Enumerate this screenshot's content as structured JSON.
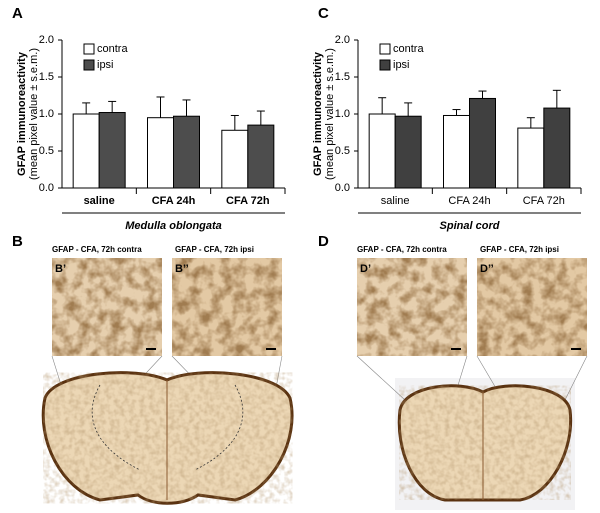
{
  "chart_data": [
    {
      "type": "bar",
      "ylabel": "GFAP  immunoreactivity",
      "ylabel_sub": "(mean pixel value ± s.e.m.)",
      "categories": [
        "saline",
        "CFA 24h",
        "CFA 72h"
      ],
      "xlabel": "Medulla oblongata",
      "series": [
        {
          "name": "contra",
          "color": "#ffffff",
          "values": [
            1.0,
            0.95,
            0.78
          ],
          "errors": [
            0.15,
            0.28,
            0.2
          ]
        },
        {
          "name": "ipsi",
          "color": "#4d4d4d",
          "values": [
            1.02,
            0.97,
            0.85
          ],
          "errors": [
            0.15,
            0.22,
            0.19
          ]
        }
      ],
      "ylim": [
        0,
        2
      ],
      "yticks": [
        {
          "value": 0,
          "label": "0.0"
        },
        {
          "value": 0.5,
          "label": "0.5"
        },
        {
          "value": 1,
          "label": "1.0"
        },
        {
          "value": 1.5,
          "label": "1.5"
        },
        {
          "value": 2,
          "label": "2.0"
        }
      ],
      "legend": "upper left"
    },
    {
      "type": "bar",
      "ylabel": "GFAP  immunoreactivity",
      "ylabel_sub": "(mean pixel value ± s.e.m.)",
      "categories": [
        "saline",
        "CFA 24h",
        "CFA 72h"
      ],
      "xlabel": "Spinal cord",
      "series": [
        {
          "name": "contra",
          "color": "#ffffff",
          "values": [
            1.0,
            0.98,
            0.81
          ],
          "errors": [
            0.22,
            0.08,
            0.14
          ]
        },
        {
          "name": "ipsi",
          "color": "#404040",
          "values": [
            0.97,
            1.21,
            1.08
          ],
          "errors": [
            0.18,
            0.1,
            0.24
          ]
        }
      ],
      "ylim": [
        0,
        2
      ],
      "yticks": [
        {
          "value": 0,
          "label": "0.0"
        },
        {
          "value": 0.5,
          "label": "0.5"
        },
        {
          "value": 1,
          "label": "1.0"
        },
        {
          "value": 1.5,
          "label": "1.5"
        },
        {
          "value": 2,
          "label": "2.0"
        }
      ],
      "legend": "upper left"
    }
  ],
  "figure": {
    "panel_labels": [
      "A",
      "B",
      "C",
      "D"
    ],
    "insets": [
      {
        "label": "B’",
        "caption": "GFAP - CFA, 72h contra"
      },
      {
        "label": "B’’",
        "caption": "GFAP - CFA, 72h ipsi"
      },
      {
        "label": "D’",
        "caption": "GFAP - CFA, 72h contra"
      },
      {
        "label": "D’’",
        "caption": "GFAP - CFA, 72h ipsi"
      }
    ]
  }
}
